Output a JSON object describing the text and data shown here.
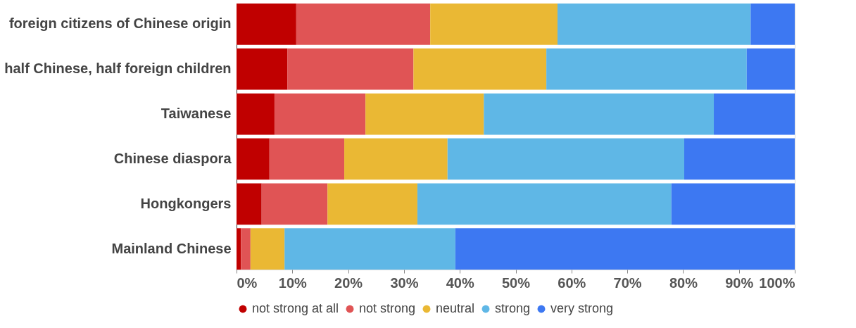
{
  "chart_data": {
    "type": "bar",
    "orientation": "horizontal",
    "stacked": true,
    "categories": [
      "foreign citizens of Chinese origin",
      "half Chinese, half foreign children",
      "Taiwanese",
      "Chinese diaspora",
      "Hongkongers",
      "Mainland Chinese"
    ],
    "series": [
      {
        "name": "not strong at all",
        "color": "#c00000",
        "values": [
          10.7,
          9.1,
          6.8,
          5.9,
          4.5,
          0.8
        ]
      },
      {
        "name": "not strong",
        "color": "#e05455",
        "values": [
          24.0,
          22.6,
          16.3,
          13.4,
          11.8,
          1.7
        ]
      },
      {
        "name": "neutral",
        "color": "#eab834",
        "values": [
          22.8,
          23.8,
          21.2,
          18.5,
          16.1,
          6.1
        ]
      },
      {
        "name": "strong",
        "color": "#5fb7e6",
        "values": [
          34.6,
          35.9,
          41.2,
          42.4,
          45.5,
          30.6
        ]
      },
      {
        "name": "very strong",
        "color": "#3d78f2",
        "values": [
          7.9,
          8.6,
          14.5,
          19.8,
          22.1,
          60.8
        ]
      }
    ],
    "xlim": [
      0,
      100
    ],
    "xticks": [
      {
        "value": 0,
        "label": "0%"
      },
      {
        "value": 10,
        "label": "10%"
      },
      {
        "value": 20,
        "label": "20%"
      },
      {
        "value": 30,
        "label": "30%"
      },
      {
        "value": 40,
        "label": "40%"
      },
      {
        "value": 50,
        "label": "50%"
      },
      {
        "value": 60,
        "label": "60%"
      },
      {
        "value": 70,
        "label": "70%"
      },
      {
        "value": 80,
        "label": "80%"
      },
      {
        "value": 90,
        "label": "90%"
      },
      {
        "value": 100,
        "label": "100%"
      }
    ],
    "grid": false,
    "legend": "bottom"
  }
}
